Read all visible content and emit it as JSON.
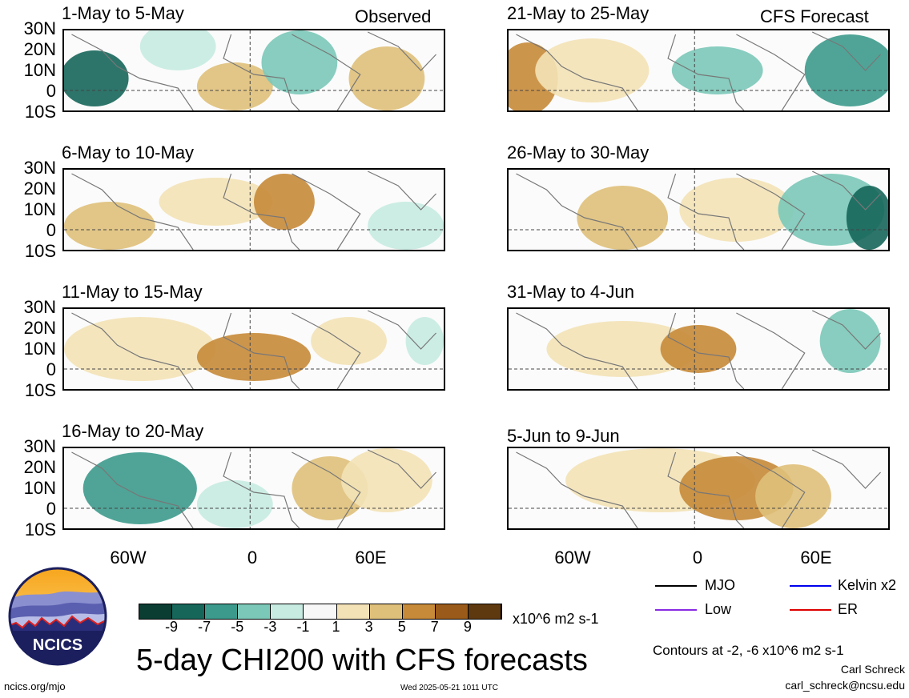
{
  "panels": [
    {
      "title": "1-May to 5-May",
      "tag": "Observed"
    },
    {
      "title": "21-May to 25-May",
      "tag": "CFS Forecast"
    },
    {
      "title": "6-May to 10-May",
      "tag": ""
    },
    {
      "title": "26-May to 30-May",
      "tag": ""
    },
    {
      "title": "11-May to 15-May",
      "tag": ""
    },
    {
      "title": "31-May to 4-Jun",
      "tag": ""
    },
    {
      "title": "16-May to 20-May",
      "tag": ""
    },
    {
      "title": "5-Jun to 9-Jun",
      "tag": ""
    }
  ],
  "lat_labels": [
    "30N",
    "20N",
    "10N",
    "0",
    "10S"
  ],
  "lon_labels": [
    "60W",
    "0",
    "60E"
  ],
  "colorbar": {
    "ticks": [
      "-9",
      "-7",
      "-5",
      "-3",
      "-1",
      "1",
      "3",
      "5",
      "7",
      "9"
    ],
    "units": "x10^6 m2 s-1",
    "colors": [
      "#0b3d33",
      "#16665a",
      "#3c9a8c",
      "#7bc8b8",
      "#c7ebe1",
      "#f7f7f7",
      "#f3e2b6",
      "#dfc07a",
      "#c68a38",
      "#9a5a1a",
      "#5e380f"
    ]
  },
  "legend": {
    "mjo": {
      "label": "MJO",
      "color": "#000000"
    },
    "kelvin": {
      "label": "Kelvin x2",
      "color": "#0000ee"
    },
    "low": {
      "label": "Low",
      "color": "#8a2be2"
    },
    "er": {
      "label": "ER",
      "color": "#dd0000"
    }
  },
  "title": "5-day CHI200 with CFS forecasts",
  "contour_note": "Contours at -2, -6 x10^6 m2 s-1",
  "author": "Carl Schreck",
  "email": "carl_schreck@ncsu.edu",
  "site": "ncics.org/mjo",
  "timestamp": "Wed 2025-05-21 1011 UTC",
  "logo_text": "NCICS"
}
